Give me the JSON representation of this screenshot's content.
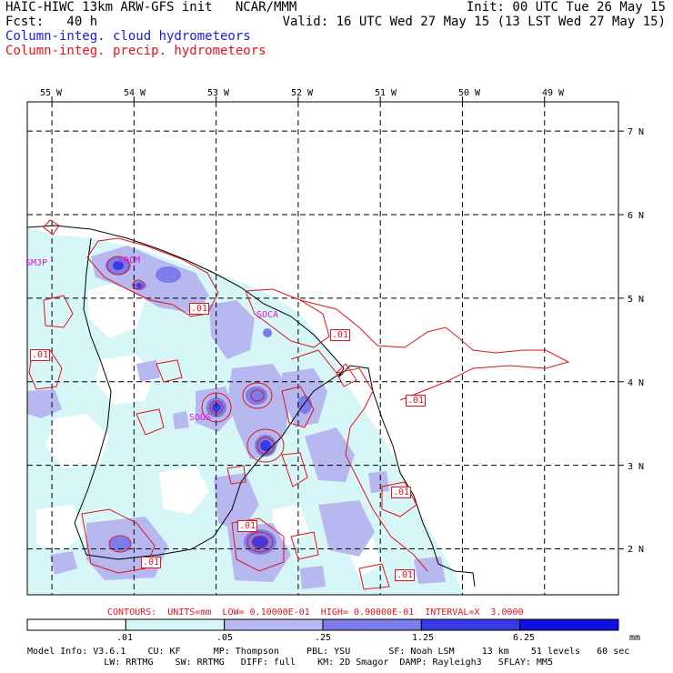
{
  "header": {
    "line1_left": "HAIC-HIWC 13km ARW-GFS init   NCAR/MMM",
    "line1_right": "Init: 00 UTC Tue 26 May 15",
    "line2_left": "Fcst:   40 h",
    "line2_right": "Valid: 16 UTC Wed 27 May 15 (13 LST Wed 27 May 15)",
    "field1": "Column-integ. cloud hydrometeors",
    "field2": "Column-integ. precip. hydrometeors"
  },
  "map": {
    "lon_labels": [
      "55 W",
      "54 W",
      "53 W",
      "52 W",
      "51 W",
      "50 W",
      "49 W"
    ],
    "lat_labels": [
      "7 N",
      "6 N",
      "5 N",
      "4 N",
      "3 N",
      "2 N"
    ],
    "lon_values": [
      -55,
      -54,
      -53,
      -52,
      -51,
      -50,
      -49
    ],
    "lat_values": [
      7,
      6,
      5,
      4,
      3,
      2
    ],
    "extent": {
      "lon_min": -55.3,
      "lon_max": -48.1,
      "lat_min": 1.45,
      "lat_max": 7.35
    },
    "sites": [
      {
        "name": "SMJP",
        "lon": -55.3,
        "lat": 5.45
      },
      {
        "name": "SOCM",
        "lon": -54.2,
        "lat": 5.45
      },
      {
        "name": "SOCA",
        "lon": -52.5,
        "lat": 4.85
      },
      {
        "name": "SOOS",
        "lon": -53.4,
        "lat": 3.7
      }
    ],
    "contour_labels": [
      {
        "text": ".01",
        "lon": -53.2,
        "lat": 4.95
      },
      {
        "text": ".01",
        "lon": -55.1,
        "lat": 4.32
      },
      {
        "text": ".01",
        "lon": -51.6,
        "lat": 4.6
      },
      {
        "text": ".01",
        "lon": -50.8,
        "lat": 3.88
      },
      {
        "text": ".01",
        "lon": -51.0,
        "lat": 2.7
      },
      {
        "text": ".01",
        "lon": -53.6,
        "lat": 1.76
      },
      {
        "text": ".01",
        "lon": -54.2,
        "lat": 1.55
      },
      {
        "text": ".01",
        "lon": -51.0,
        "lat": 1.42
      }
    ],
    "colors": {
      "shade1": "#d7f6f8",
      "shade2": "#b8b8f0",
      "shade3": "#7c7cea",
      "shade4": "#3a3ae6",
      "shade5": "#1010e0",
      "contour": "#e0141e",
      "coast": "#000000",
      "site": "#e010e0"
    }
  },
  "contours_text": "CONTOURS:  UNITS=mm  LOW= 0.10000E-01  HIGH= 0.90000E-01  INTERVAL=X  3.0000",
  "colorbar": {
    "labels": [
      ".01",
      ".05",
      ".25",
      "1.25",
      "6.25",
      "mm"
    ],
    "colors": [
      "#ffffff",
      "#d7f6f8",
      "#b8b8f0",
      "#7c7cea",
      "#3a3ae6",
      "#1010e0"
    ]
  },
  "footer": {
    "line1": "Model Info: V3.6.1    CU: KF      MP: Thompson     PBL: YSU       SF: Noah LSM     13 km    51 levels   60 sec",
    "line2": "              LW: RRTMG    SW: RRTMG   DIFF: full    KM: 2D Smagor  DAMP: Rayleigh3   SFLAY: MM5"
  }
}
